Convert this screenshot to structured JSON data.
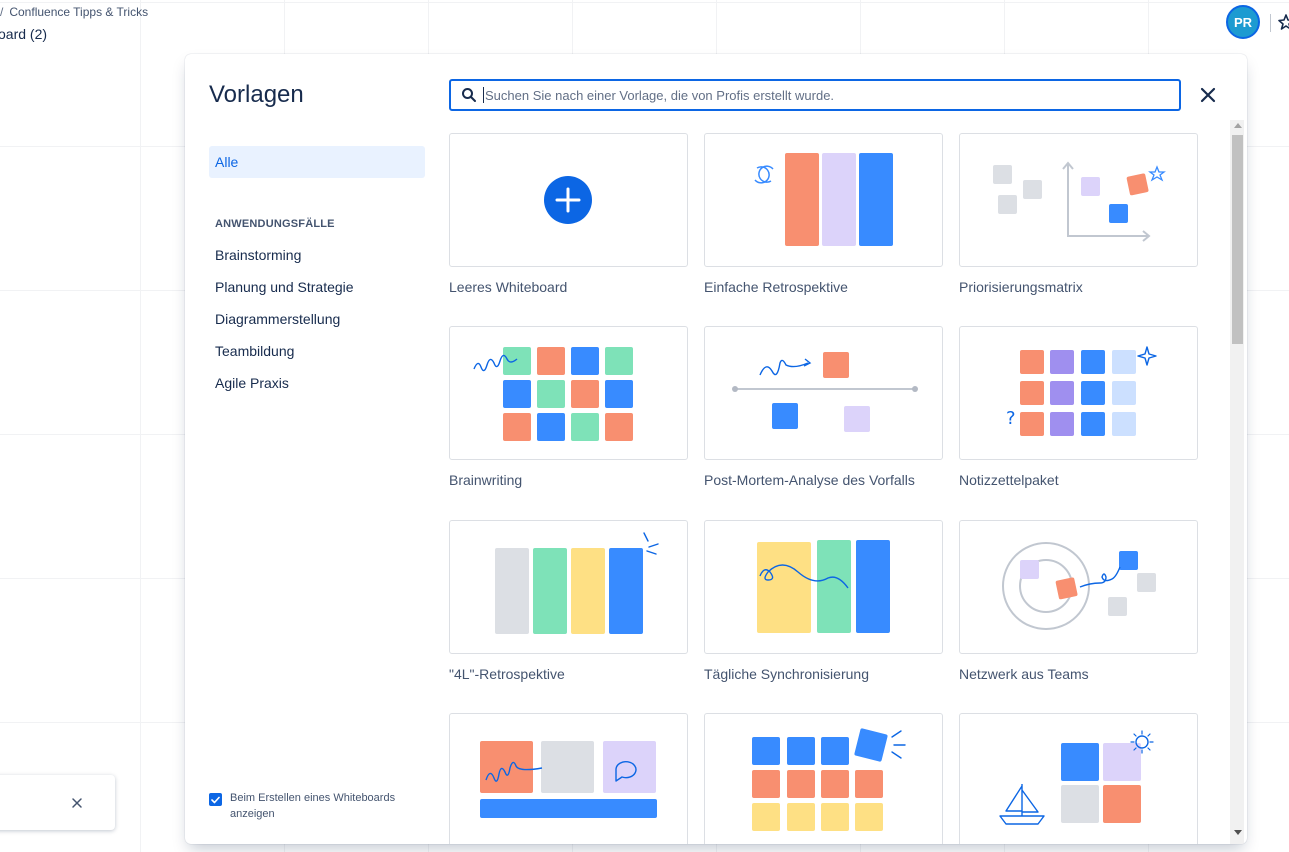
{
  "app": {
    "breadcrumb": "Confluence Tipps & Tricks",
    "board_title": "oard (2)",
    "avatar_initials": "PR"
  },
  "modal": {
    "title": "Vorlagen",
    "search": {
      "value": "",
      "placeholder": "Suchen Sie nach einer Vorlage, die von Profis erstellt wurde."
    }
  },
  "sidebar": {
    "selected": "Alle",
    "section_heading": "ANWENDUNGSFÄLLE",
    "items": [
      "Brainstorming",
      "Planung und Strategie",
      "Diagrammerstellung",
      "Teambildung",
      "Agile Praxis"
    ]
  },
  "show_on_create": {
    "checked": true,
    "label": "Beim Erstellen eines Whiteboards anzeigen"
  },
  "templates": [
    {
      "label": "Leeres Whiteboard",
      "icon": "blank-whiteboard"
    },
    {
      "label": "Einfache Retrospektive",
      "icon": "simple-retro"
    },
    {
      "label": "Priorisierungsmatrix",
      "icon": "prioritization-matrix"
    },
    {
      "label": "Brainwriting",
      "icon": "brainwriting"
    },
    {
      "label": "Post-Mortem-Analyse des Vorfalls",
      "icon": "incident-postmortem"
    },
    {
      "label": "Notizzettelpaket",
      "icon": "sticky-note-pack"
    },
    {
      "label": "\"4L\"-Retrospektive",
      "icon": "4l-retro"
    },
    {
      "label": "Tägliche Synchronisierung",
      "icon": "daily-sync"
    },
    {
      "label": "Netzwerk aus Teams",
      "icon": "team-network"
    },
    {
      "label": "",
      "icon": "kanban"
    },
    {
      "label": "",
      "icon": "sticky-grid"
    },
    {
      "label": "",
      "icon": "team-building"
    }
  ],
  "colors": {
    "accent": "#0c66e4",
    "blue": "#388bff",
    "coral": "#f88f70",
    "lavender": "#dcd3fa",
    "purple": "#9f8fef",
    "green": "#7ee2b8",
    "yellow": "#fee084",
    "gray": "#dcdfe4",
    "light_blue": "#cce0ff"
  }
}
